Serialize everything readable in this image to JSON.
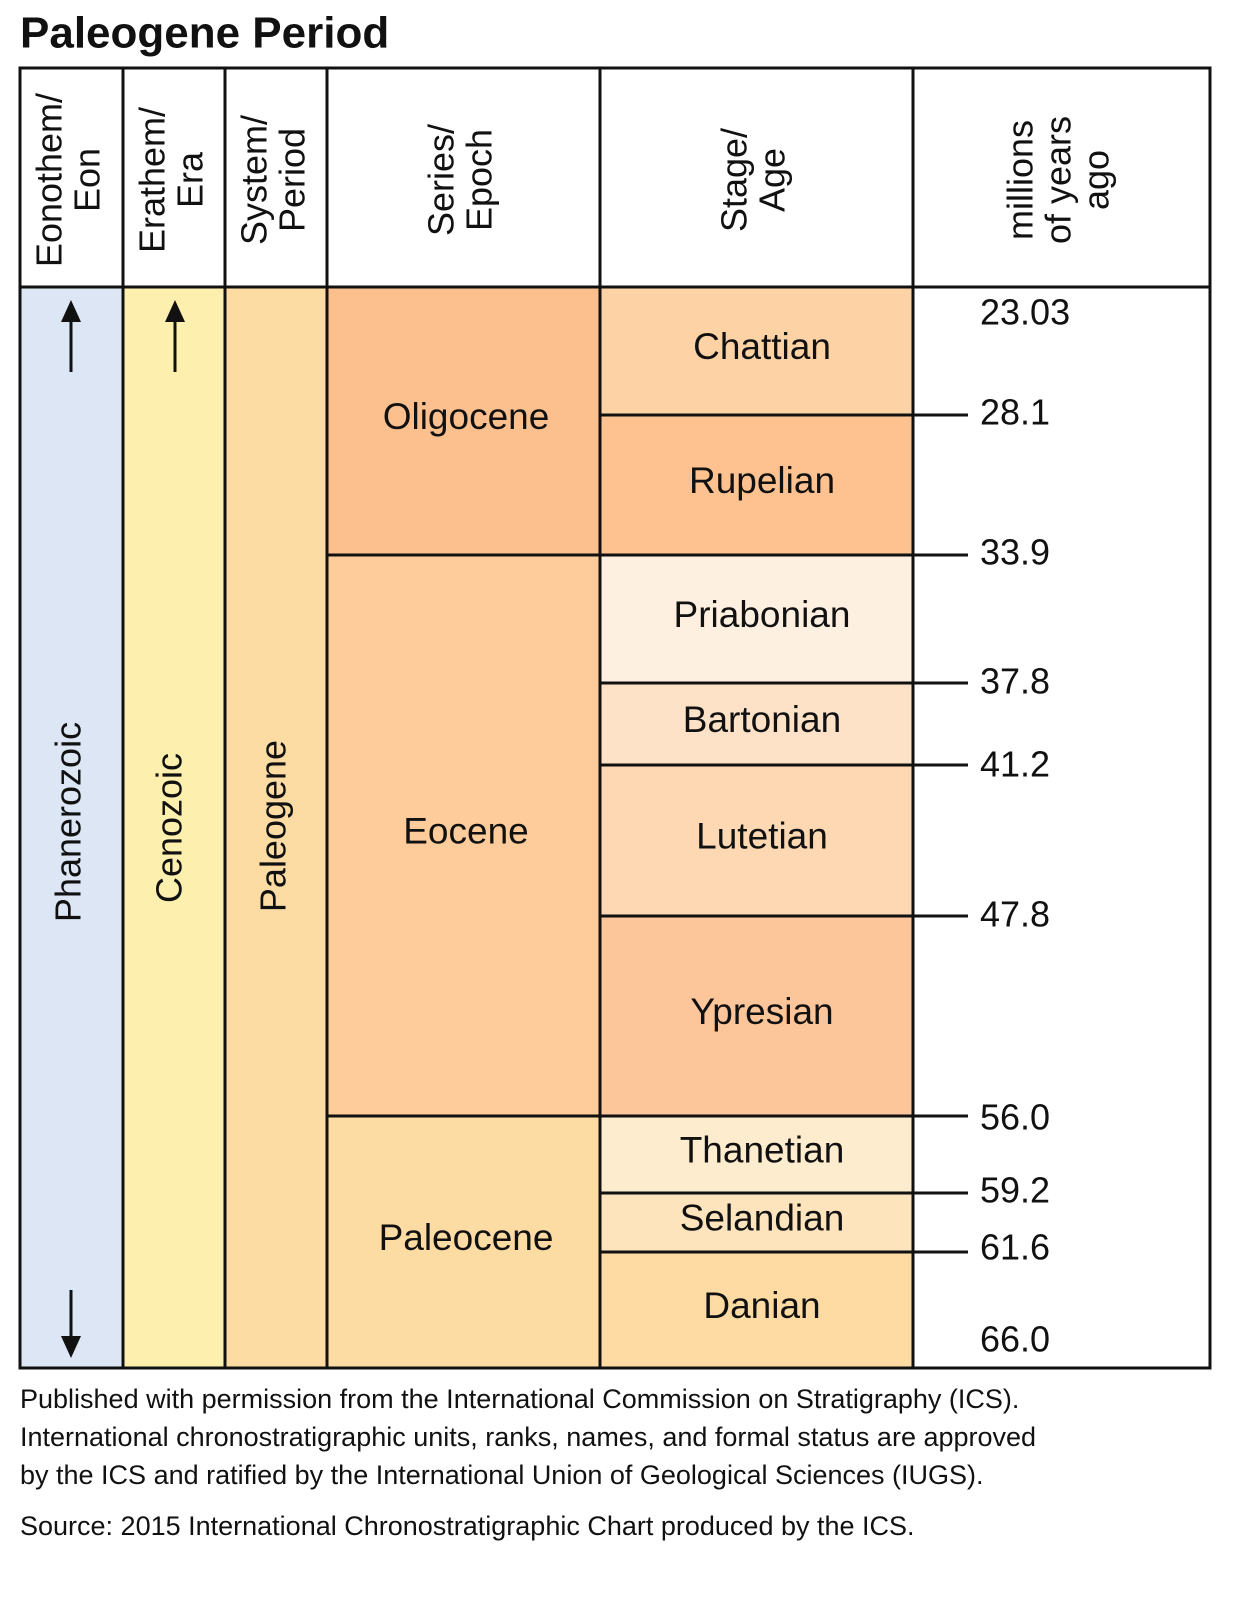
{
  "title": "Paleogene Period",
  "headers": [
    [
      "Eonothem/",
      "Eon"
    ],
    [
      "Erathem/",
      "Era"
    ],
    [
      "System/",
      "Period"
    ],
    [
      "Series/",
      "Epoch"
    ],
    [
      "Stage/",
      "Age"
    ],
    [
      "millions",
      "of years",
      "ago"
    ]
  ],
  "eon": "Phanerozoic",
  "era": "Cenozoic",
  "period": "Paleogene",
  "epochs": [
    "Oligocene",
    "Eocene",
    "Paleocene"
  ],
  "stages": [
    "Chattian",
    "Rupelian",
    "Priabonian",
    "Bartonian",
    "Lutetian",
    "Ypresian",
    "Thanetian",
    "Selandian",
    "Danian"
  ],
  "ages": [
    "23.03",
    "28.1",
    "33.9",
    "37.8",
    "41.2",
    "47.8",
    "56.0",
    "59.2",
    "61.6",
    "66.0"
  ],
  "footnote": [
    "Published with permission from the International Commission on Stratigraphy (ICS).",
    "International chronostratigraphic units, ranks, names, and formal status are approved",
    "by the ICS and ratified by the International Union of Geological Sciences (IUGS)."
  ],
  "source": "Source: 2015 International Chronostratigraphic Chart produced by the ICS."
}
